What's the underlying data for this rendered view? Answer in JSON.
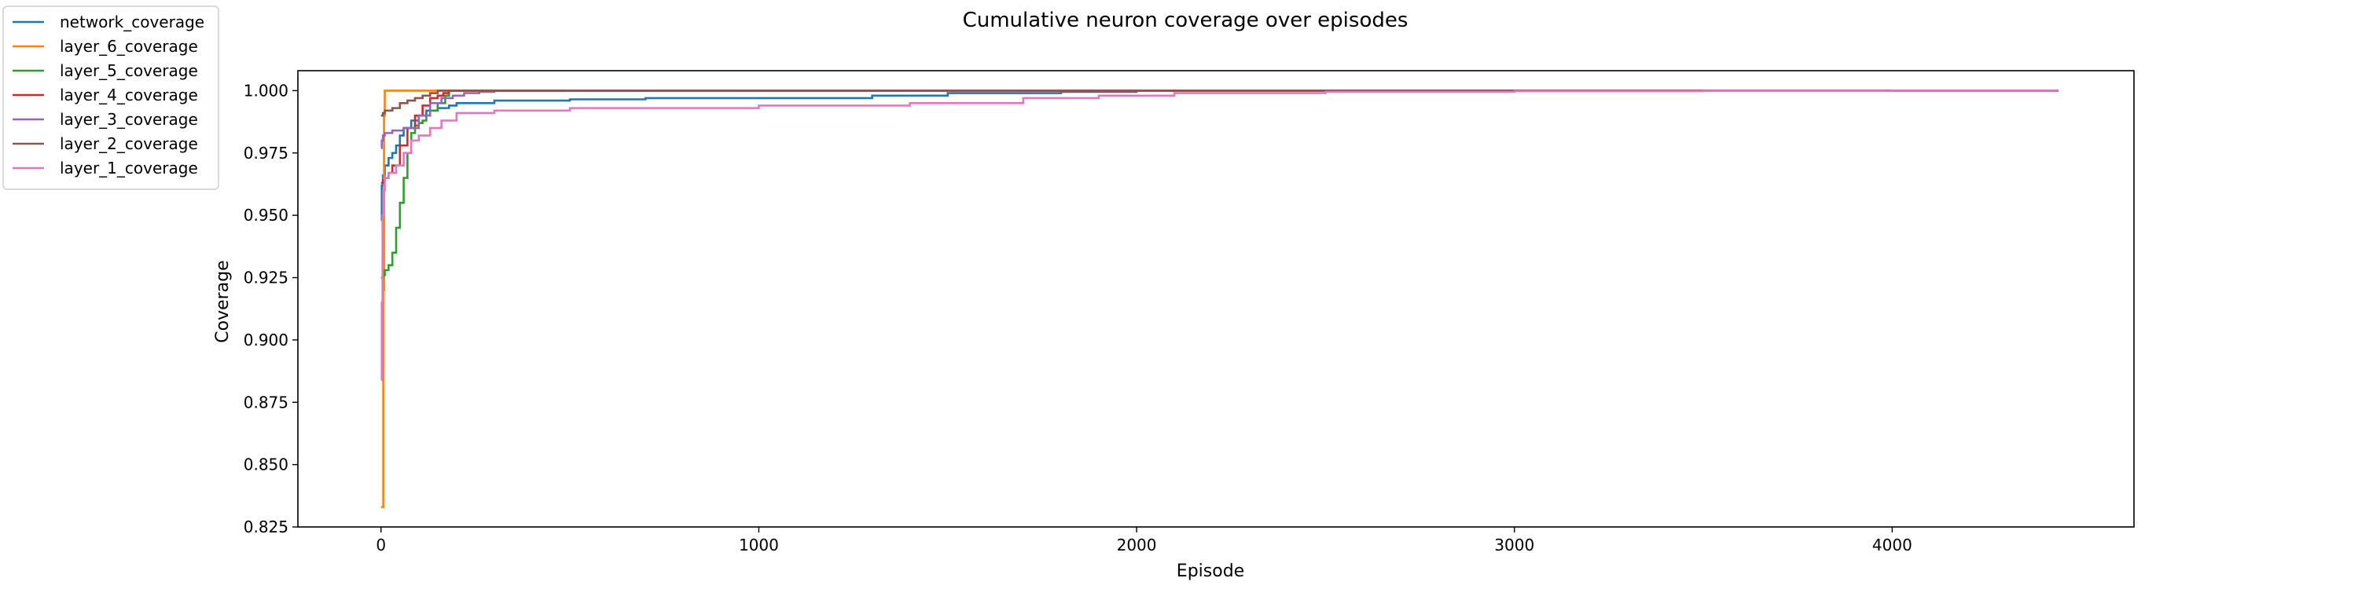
{
  "chart_data": {
    "type": "line",
    "title": "Cumulative neuron coverage over episodes",
    "xlabel": "Episode",
    "ylabel": "Coverage",
    "xlim": [
      -220,
      4640
    ],
    "ylim": [
      0.825,
      1.008
    ],
    "xticks": [
      0,
      1000,
      2000,
      3000,
      4000
    ],
    "yticks": [
      0.825,
      0.85,
      0.875,
      0.9,
      0.925,
      0.95,
      0.975,
      1.0
    ],
    "xtick_labels": [
      "0",
      "1000",
      "2000",
      "3000",
      "4000"
    ],
    "ytick_labels": [
      "0.825",
      "0.850",
      "0.875",
      "0.900",
      "0.925",
      "0.950",
      "0.975",
      "1.000"
    ],
    "grid": false,
    "legend_position": "top-left (outside axes)",
    "series": [
      {
        "name": "network_coverage",
        "color": "#1f77b4",
        "x": [
          0,
          2,
          5,
          10,
          20,
          30,
          40,
          50,
          60,
          80,
          100,
          120,
          150,
          180,
          200,
          300,
          400,
          500,
          700,
          1000,
          1300,
          1500,
          1800,
          2000,
          2500,
          3000,
          3500,
          4000,
          4440
        ],
        "y": [
          0.948,
          0.962,
          0.966,
          0.97,
          0.973,
          0.975,
          0.978,
          0.982,
          0.985,
          0.988,
          0.99,
          0.992,
          0.993,
          0.994,
          0.995,
          0.996,
          0.996,
          0.9965,
          0.997,
          0.997,
          0.998,
          0.999,
          0.9995,
          1.0,
          1.0,
          1.0,
          1.0,
          1.0,
          1.0
        ]
      },
      {
        "name": "layer_6_coverage",
        "color": "#ff7f0e",
        "x": [
          0,
          5,
          6,
          8,
          10,
          15,
          4440
        ],
        "y": [
          0.833,
          0.833,
          0.92,
          0.99,
          1.0,
          1.0,
          1.0
        ]
      },
      {
        "name": "layer_5_coverage",
        "color": "#2ca02c",
        "x": [
          0,
          5,
          10,
          20,
          30,
          40,
          50,
          60,
          70,
          80,
          90,
          100,
          110,
          120,
          130,
          150,
          170,
          180,
          200,
          4440
        ],
        "y": [
          0.925,
          0.926,
          0.928,
          0.93,
          0.935,
          0.945,
          0.955,
          0.965,
          0.975,
          0.983,
          0.986,
          0.987,
          0.988,
          0.99,
          0.992,
          0.995,
          0.998,
          1.0,
          1.0,
          1.0
        ]
      },
      {
        "name": "layer_4_coverage",
        "color": "#d62728",
        "x": [
          0,
          5,
          10,
          20,
          30,
          50,
          70,
          90,
          110,
          130,
          150,
          165,
          180,
          4440
        ],
        "y": [
          0.963,
          0.964,
          0.965,
          0.967,
          0.97,
          0.978,
          0.985,
          0.99,
          0.994,
          0.997,
          0.998,
          0.999,
          1.0,
          1.0
        ]
      },
      {
        "name": "layer_3_coverage",
        "color": "#9467bd",
        "x": [
          0,
          2,
          5,
          10,
          30,
          60,
          100,
          130,
          160,
          190,
          220,
          260,
          300,
          4440
        ],
        "y": [
          0.977,
          0.98,
          0.982,
          0.983,
          0.984,
          0.985,
          0.99,
          0.995,
          0.997,
          0.998,
          0.999,
          0.9995,
          1.0,
          1.0
        ]
      },
      {
        "name": "layer_2_coverage",
        "color": "#8c564b",
        "x": [
          0,
          5,
          10,
          30,
          50,
          70,
          90,
          110,
          130,
          150,
          4440
        ],
        "y": [
          0.99,
          0.991,
          0.992,
          0.993,
          0.995,
          0.996,
          0.997,
          0.998,
          0.999,
          1.0,
          1.0
        ]
      },
      {
        "name": "layer_1_coverage",
        "color": "#e377c2",
        "x": [
          0,
          2,
          4,
          6,
          10,
          20,
          40,
          60,
          80,
          100,
          130,
          160,
          200,
          300,
          500,
          1000,
          1400,
          1700,
          1900,
          2100,
          2500,
          3000,
          3500,
          4000,
          4440
        ],
        "y": [
          0.884,
          0.915,
          0.95,
          0.96,
          0.965,
          0.967,
          0.97,
          0.975,
          0.98,
          0.982,
          0.985,
          0.988,
          0.991,
          0.992,
          0.993,
          0.994,
          0.995,
          0.997,
          0.998,
          0.999,
          0.9995,
          0.9998,
          0.9999,
          1.0,
          1.0
        ]
      }
    ]
  }
}
